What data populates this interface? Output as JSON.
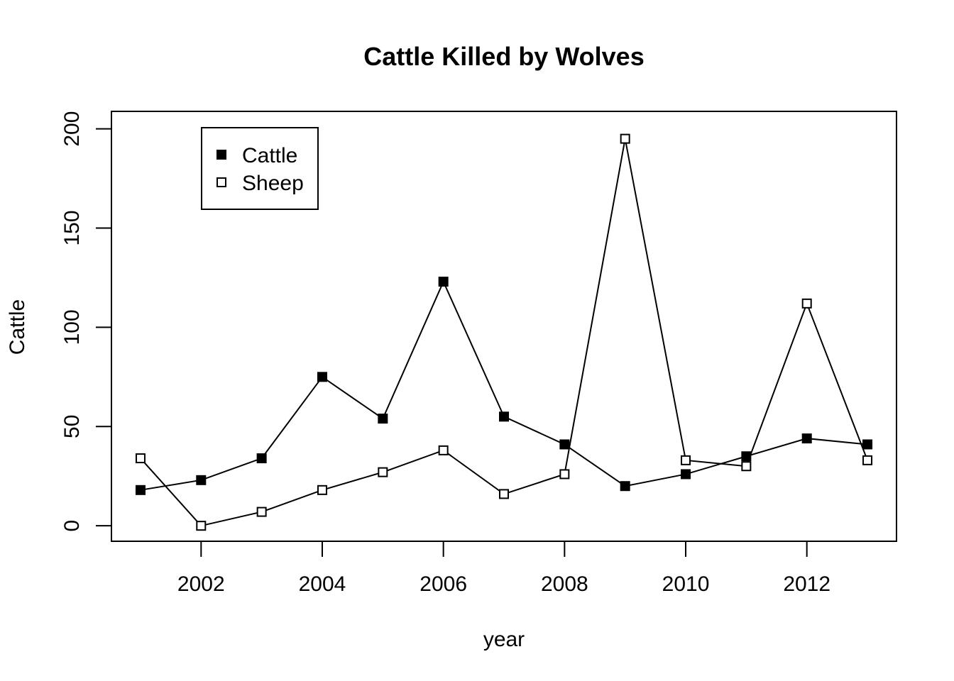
{
  "chart_data": {
    "type": "line",
    "title": "Cattle Killed by Wolves",
    "xlabel": "year",
    "ylabel": "Cattle",
    "x": [
      2001,
      2002,
      2003,
      2004,
      2005,
      2006,
      2007,
      2008,
      2009,
      2010,
      2011,
      2012,
      2013
    ],
    "series": [
      {
        "name": "Cattle",
        "marker": "filled-square",
        "color": "#000000",
        "values": [
          18,
          23,
          34,
          75,
          54,
          123,
          55,
          41,
          20,
          26,
          35,
          44,
          41
        ]
      },
      {
        "name": "Sheep",
        "marker": "open-square",
        "color": "#000000",
        "values": [
          34,
          0,
          7,
          18,
          27,
          38,
          16,
          26,
          195,
          33,
          30,
          112,
          33
        ]
      }
    ],
    "xticks": [
      2002,
      2004,
      2006,
      2008,
      2010,
      2012
    ],
    "yticks": [
      0,
      50,
      100,
      150,
      200
    ],
    "xlim": [
      2000.52,
      2013.48
    ],
    "ylim": [
      -7.8,
      208.8
    ],
    "grid": false,
    "legend_position": "top-left"
  }
}
